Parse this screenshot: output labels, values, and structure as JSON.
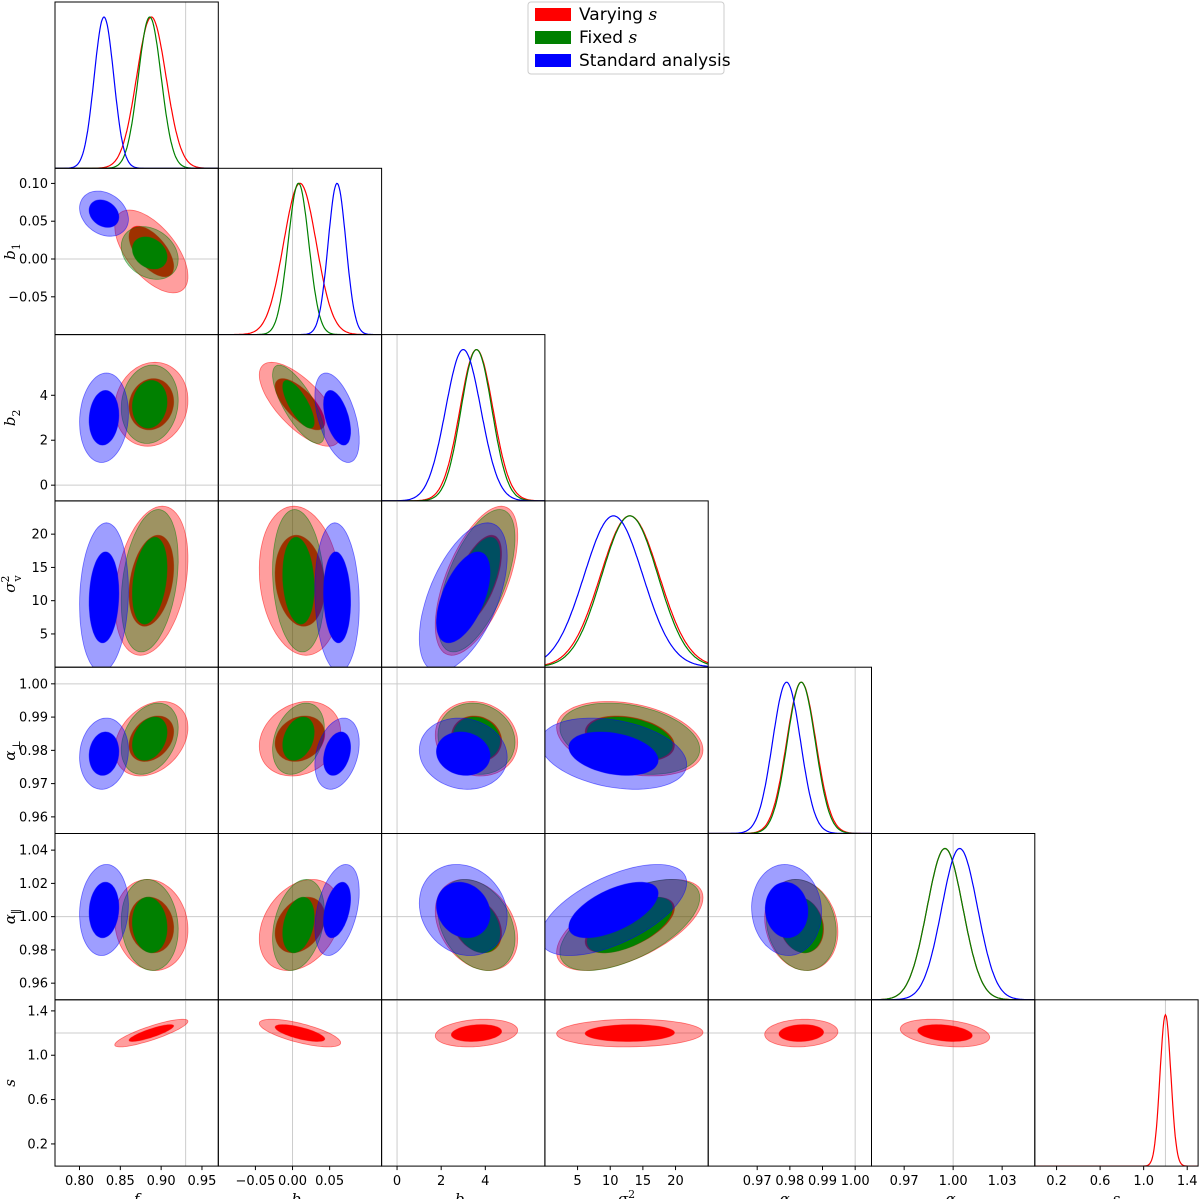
{
  "chart_data": {
    "type": "corner-plot",
    "title": "",
    "parameters": [
      {
        "key": "f",
        "label": "f",
        "sub": "",
        "sup": "",
        "range": [
          0.77,
          0.97
        ],
        "ticks": [
          0.8,
          0.85,
          0.9,
          0.95
        ],
        "tick_labels": [
          "0.80",
          "0.85",
          "0.90",
          "0.95"
        ],
        "fiducial": 0.93
      },
      {
        "key": "b1",
        "label": "b",
        "sub": "1",
        "sup": "",
        "range": [
          -0.1,
          0.12
        ],
        "ticks": [
          -0.05,
          0.0,
          0.05
        ],
        "tick_labels": [
          "−0.05",
          "0.00",
          "0.05"
        ],
        "fiducial": 0.0
      },
      {
        "key": "b2",
        "label": "b",
        "sub": "2",
        "sup": "",
        "range": [
          -0.7,
          6.7
        ],
        "ticks": [
          0,
          2,
          4
        ],
        "tick_labels": [
          "0",
          "2",
          "4"
        ],
        "fiducial": 0.0
      },
      {
        "key": "sigmav2",
        "label": "σ",
        "sub": "v",
        "sup": "2",
        "range": [
          0,
          25
        ],
        "ticks": [
          5,
          10,
          15,
          20
        ],
        "tick_labels": [
          "5",
          "10",
          "15",
          "20"
        ],
        "fiducial": null
      },
      {
        "key": "aperp",
        "label": "α",
        "sub": "⊥",
        "sup": "",
        "range": [
          0.955,
          1.005
        ],
        "ticks": [
          0.97,
          0.98,
          0.99,
          1.0
        ],
        "tick_labels": [
          "0.97",
          "0.98",
          "0.99",
          "1.00"
        ],
        "fiducial": 1.0
      },
      {
        "key": "apar",
        "label": "α",
        "sub": "∥",
        "sup": "",
        "range": [
          0.95,
          1.05
        ],
        "ticks": [
          0.97,
          1.0,
          1.03
        ],
        "tick_labels": [
          "0.97",
          "1.00",
          "1.03"
        ],
        "fiducial": 1.0
      },
      {
        "key": "s",
        "label": "s",
        "sub": "",
        "sup": "",
        "range": [
          0.0,
          1.5
        ],
        "ticks": [
          0.2,
          0.6,
          1.0,
          1.4
        ],
        "tick_labels": [
          "0.2",
          "0.6",
          "1.0",
          "1.4"
        ],
        "fiducial": 1.2
      }
    ],
    "y_axis_ticks": {
      "b1": {
        "ticks": [
          -0.05,
          0.0,
          0.05,
          0.1
        ],
        "tick_labels": [
          "−0.05",
          "0.00",
          "0.05",
          "0.10"
        ]
      },
      "b2": {
        "ticks": [
          0,
          2,
          4
        ],
        "tick_labels": [
          "0",
          "2",
          "4"
        ]
      },
      "sigmav2": {
        "ticks": [
          5,
          10,
          15,
          20
        ],
        "tick_labels": [
          "5",
          "10",
          "15",
          "20"
        ]
      },
      "aperp": {
        "ticks": [
          0.96,
          0.97,
          0.98,
          0.99,
          1.0
        ],
        "tick_labels": [
          "0.96",
          "0.97",
          "0.98",
          "0.99",
          "1.00"
        ]
      },
      "apar": {
        "ticks": [
          0.96,
          0.98,
          1.0,
          1.02,
          1.04
        ],
        "tick_labels": [
          "0.96",
          "0.98",
          "1.00",
          "1.02",
          "1.04"
        ]
      },
      "s": {
        "ticks": [
          0.2,
          0.6,
          1.0,
          1.4
        ],
        "tick_labels": [
          "0.2",
          "0.6",
          "1.0",
          "1.4"
        ]
      }
    },
    "legend": {
      "placement": "top-center",
      "entries": [
        {
          "name": "Varying",
          "var": "s",
          "color": "#ff0000"
        },
        {
          "name": "Fixed",
          "var": "s",
          "color": "#008000"
        },
        {
          "name": "Standard analysis",
          "var": "",
          "color": "#0000ff"
        }
      ]
    },
    "series": [
      {
        "name": "Varying s",
        "color": "#ff0000",
        "params": [
          "f",
          "b1",
          "b2",
          "sigmav2",
          "aperp",
          "apar",
          "s"
        ],
        "mean": [
          0.888,
          0.01,
          3.6,
          13.0,
          0.9835,
          0.995,
          1.2
        ],
        "sigma": [
          0.018,
          0.022,
          0.75,
          4.5,
          0.0045,
          0.011,
          0.05
        ],
        "correlation": [
          [
            1.0,
            -0.6,
            0.1,
            0.3,
            0.3,
            -0.1,
            0.85
          ],
          [
            -0.6,
            1.0,
            -0.7,
            -0.15,
            0.2,
            0.3,
            -0.7
          ],
          [
            0.1,
            -0.7,
            1.0,
            0.6,
            -0.1,
            -0.3,
            0.2
          ],
          [
            0.3,
            -0.15,
            0.6,
            1.0,
            -0.3,
            0.6,
            0.05
          ],
          [
            0.3,
            0.2,
            -0.1,
            -0.3,
            1.0,
            -0.15,
            0.1
          ],
          [
            -0.1,
            0.3,
            -0.3,
            0.6,
            -0.15,
            1.0,
            -0.3
          ],
          [
            0.85,
            -0.7,
            0.2,
            0.05,
            0.1,
            -0.3,
            1.0
          ]
        ]
      },
      {
        "name": "Fixed s",
        "color": "#008000",
        "params": [
          "f",
          "b1",
          "b2",
          "sigmav2",
          "aperp",
          "apar"
        ],
        "mean": [
          0.886,
          0.008,
          3.6,
          13.0,
          0.9835,
          0.995
        ],
        "sigma": [
          0.014,
          0.014,
          0.7,
          4.3,
          0.0043,
          0.011
        ],
        "correlation": [
          [
            1.0,
            -0.25,
            0.1,
            0.3,
            0.3,
            -0.1
          ],
          [
            -0.25,
            1.0,
            -0.75,
            -0.15,
            0.3,
            0.3
          ],
          [
            0.1,
            -0.75,
            1.0,
            0.6,
            -0.1,
            -0.3
          ],
          [
            0.3,
            -0.15,
            0.6,
            1.0,
            -0.3,
            0.6
          ],
          [
            0.3,
            0.3,
            -0.1,
            -0.3,
            1.0,
            -0.15
          ],
          [
            -0.1,
            0.3,
            -0.3,
            0.6,
            -0.15,
            1.0
          ]
        ]
      },
      {
        "name": "Standard analysis",
        "color": "#0000ff",
        "params": [
          "f",
          "b1",
          "b2",
          "sigmav2",
          "aperp",
          "apar"
        ],
        "mean": [
          0.83,
          0.06,
          3.0,
          10.5,
          0.979,
          1.004
        ],
        "sigma": [
          0.012,
          0.012,
          0.8,
          4.5,
          0.0043,
          0.011
        ],
        "correlation": [
          [
            1.0,
            -0.25,
            0.1,
            0.1,
            0.1,
            0.1
          ],
          [
            -0.25,
            1.0,
            -0.5,
            -0.1,
            0.3,
            0.4
          ],
          [
            0.1,
            -0.5,
            1.0,
            0.55,
            -0.1,
            -0.15
          ],
          [
            0.1,
            -0.1,
            0.55,
            1.0,
            -0.3,
            0.6
          ],
          [
            0.1,
            0.3,
            -0.1,
            -0.3,
            1.0,
            -0.05
          ],
          [
            0.1,
            0.4,
            -0.15,
            0.6,
            -0.05,
            1.0
          ]
        ]
      }
    ]
  }
}
